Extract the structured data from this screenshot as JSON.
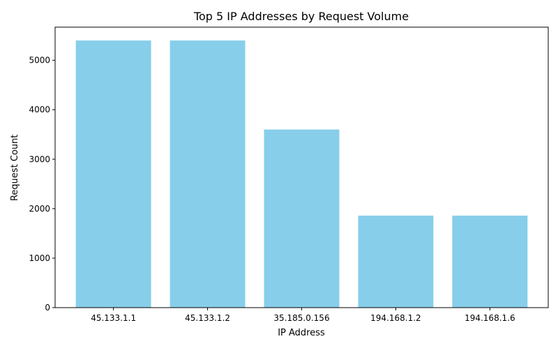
{
  "chart_data": {
    "type": "bar",
    "title": "Top 5 IP Addresses by Request Volume",
    "xlabel": "IP Address",
    "ylabel": "Request Count",
    "categories": [
      "45.133.1.1",
      "45.133.1.2",
      "35.185.0.156",
      "194.168.1.2",
      "194.168.1.6"
    ],
    "values": [
      5400,
      5400,
      3600,
      1860,
      1860
    ],
    "ylim": [
      0,
      5670
    ],
    "yticks": [
      0,
      1000,
      2000,
      3000,
      4000,
      5000
    ],
    "grid": false,
    "legend": "none",
    "bar_color": "#87ceeb"
  }
}
